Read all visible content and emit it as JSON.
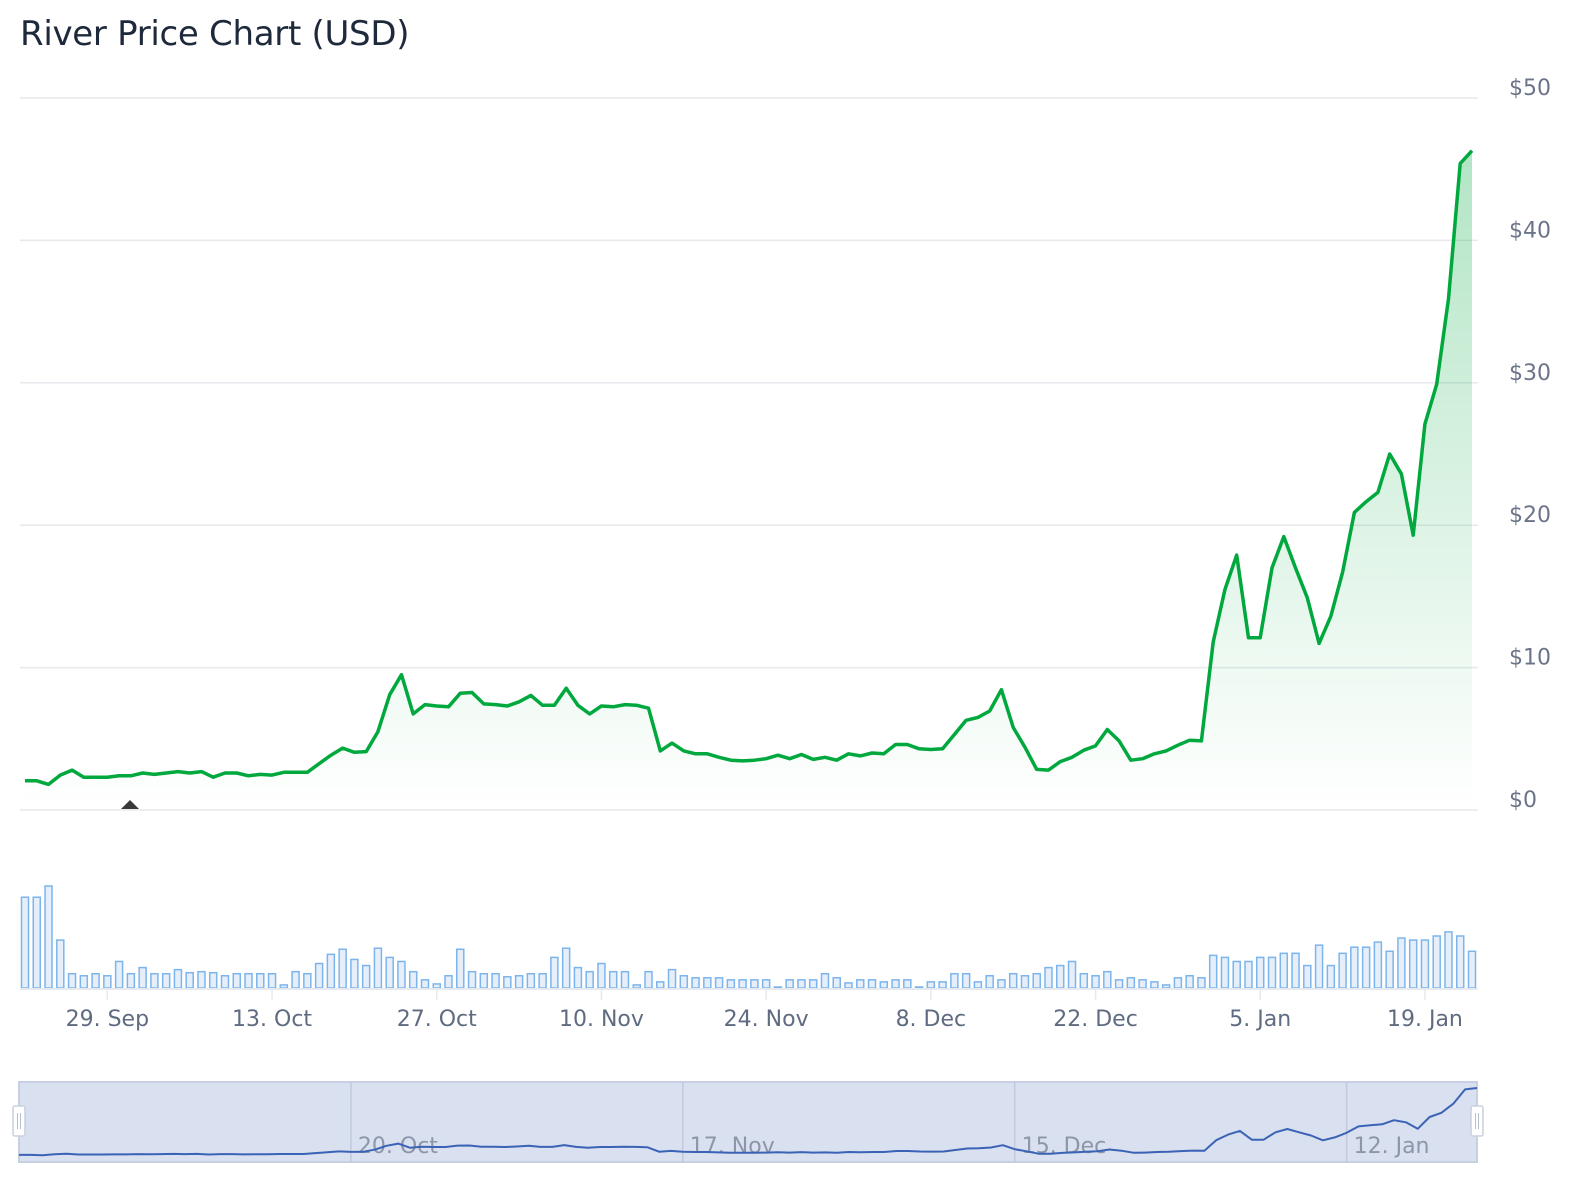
{
  "chart_data": {
    "type": "area",
    "title": "River Price Chart (USD)",
    "ylim": [
      0,
      50
    ],
    "y_ticks": [
      "$0",
      "$10",
      "$20",
      "$30",
      "$40",
      "$50"
    ],
    "y_tick_values": [
      0,
      10,
      20,
      30,
      40,
      50
    ],
    "x_ticks": [
      "29. Sep",
      "13. Oct",
      "27. Oct",
      "10. Nov",
      "24. Nov",
      "8. Dec",
      "22. Dec",
      "5. Jan",
      "19. Jan"
    ],
    "x_tick_dates": [
      "2025-09-29",
      "2025-10-13",
      "2025-10-27",
      "2025-11-10",
      "2025-11-24",
      "2025-12-08",
      "2025-12-22",
      "2026-01-05",
      "2026-01-19"
    ],
    "navigator_ticks": [
      "20. Oct",
      "17. Nov",
      "15. Dec",
      "12. Jan"
    ],
    "navigator_tick_dates": [
      "2025-10-20",
      "2025-11-17",
      "2025-12-15",
      "2026-01-12"
    ],
    "grid": true,
    "legend": "none",
    "colors": {
      "price_line": "#00a83e",
      "volume": "#7cb5ec",
      "navigator_line": "#3b63b5",
      "navigator_mask": "#d9e0ef",
      "marker": "#3a3a3a"
    },
    "x": [
      "2025-09-22",
      "2025-09-23",
      "2025-09-24",
      "2025-09-25",
      "2025-09-26",
      "2025-09-27",
      "2025-09-28",
      "2025-09-29",
      "2025-09-30",
      "2025-10-01",
      "2025-10-02",
      "2025-10-03",
      "2025-10-04",
      "2025-10-05",
      "2025-10-06",
      "2025-10-07",
      "2025-10-08",
      "2025-10-09",
      "2025-10-10",
      "2025-10-11",
      "2025-10-12",
      "2025-10-13",
      "2025-10-14",
      "2025-10-15",
      "2025-10-16",
      "2025-10-17",
      "2025-10-18",
      "2025-10-19",
      "2025-10-20",
      "2025-10-21",
      "2025-10-22",
      "2025-10-23",
      "2025-10-24",
      "2025-10-25",
      "2025-10-26",
      "2025-10-27",
      "2025-10-28",
      "2025-10-29",
      "2025-10-30",
      "2025-10-31",
      "2025-11-01",
      "2025-11-02",
      "2025-11-03",
      "2025-11-04",
      "2025-11-05",
      "2025-11-06",
      "2025-11-07",
      "2025-11-08",
      "2025-11-09",
      "2025-11-10",
      "2025-11-11",
      "2025-11-12",
      "2025-11-13",
      "2025-11-14",
      "2025-11-15",
      "2025-11-16",
      "2025-11-17",
      "2025-11-18",
      "2025-11-19",
      "2025-11-20",
      "2025-11-21",
      "2025-11-22",
      "2025-11-23",
      "2025-11-24",
      "2025-11-25",
      "2025-11-26",
      "2025-11-27",
      "2025-11-28",
      "2025-11-29",
      "2025-11-30",
      "2025-12-01",
      "2025-12-02",
      "2025-12-03",
      "2025-12-04",
      "2025-12-05",
      "2025-12-06",
      "2025-12-07",
      "2025-12-08",
      "2025-12-09",
      "2025-12-10",
      "2025-12-11",
      "2025-12-12",
      "2025-12-13",
      "2025-12-14",
      "2025-12-15",
      "2025-12-16",
      "2025-12-17",
      "2025-12-18",
      "2025-12-19",
      "2025-12-20",
      "2025-12-21",
      "2025-12-22",
      "2025-12-23",
      "2025-12-24",
      "2025-12-25",
      "2025-12-26",
      "2025-12-27",
      "2025-12-28",
      "2025-12-29",
      "2025-12-30",
      "2025-12-31",
      "2026-01-01",
      "2026-01-02",
      "2026-01-03",
      "2026-01-04",
      "2026-01-05",
      "2026-01-06",
      "2026-01-07",
      "2026-01-08",
      "2026-01-09",
      "2026-01-10",
      "2026-01-11",
      "2026-01-12",
      "2026-01-13",
      "2026-01-14",
      "2026-01-15",
      "2026-01-16",
      "2026-01-17",
      "2026-01-18",
      "2026-01-19",
      "2026-01-20",
      "2026-01-21",
      "2026-01-22",
      "2026-01-23"
    ],
    "series": [
      {
        "values": [
          2.05,
          2.05,
          1.8,
          2.45,
          2.8,
          2.3,
          2.3,
          2.3,
          2.4,
          2.4,
          2.6,
          2.5,
          2.6,
          2.7,
          2.6,
          2.7,
          2.3,
          2.6,
          2.6,
          2.4,
          2.5,
          2.45,
          2.65,
          2.65,
          2.65,
          3.25,
          3.85,
          4.35,
          4.05,
          4.1,
          5.5,
          8.1,
          9.5,
          6.75,
          7.4,
          7.3,
          7.25,
          8.2,
          8.25,
          7.45,
          7.4,
          7.3,
          7.6,
          8.05,
          7.35,
          7.35,
          8.55,
          7.35,
          6.75,
          7.3,
          7.25,
          7.4,
          7.35,
          7.15,
          4.15,
          4.7,
          4.15,
          3.95,
          3.95,
          3.7,
          3.5,
          3.45,
          3.5,
          3.6,
          3.85,
          3.6,
          3.9,
          3.55,
          3.7,
          3.5,
          3.95,
          3.8,
          4.0,
          3.95,
          4.6,
          4.6,
          4.3,
          4.25,
          4.3,
          5.3,
          6.3,
          6.5,
          6.95,
          8.45,
          5.8,
          4.4,
          2.85,
          2.8,
          3.4,
          3.7,
          4.2,
          4.5,
          5.65,
          4.85,
          3.5,
          3.6,
          3.95,
          4.15,
          4.55,
          4.9,
          4.85,
          11.8,
          15.5,
          17.9,
          12.1,
          12.1,
          17.0,
          19.2,
          17.0,
          14.9,
          11.7,
          13.6,
          16.7,
          20.9,
          21.65,
          22.3,
          25.0,
          23.6,
          19.3,
          27.1,
          29.9,
          35.9,
          45.4,
          46.3
        ]
      },
      {
        "type": "volume",
        "relative_values": [
          89,
          89,
          100,
          47,
          14,
          12,
          14,
          12,
          26,
          14,
          20,
          14,
          14,
          18,
          15,
          16,
          15,
          12,
          14,
          14,
          14,
          14,
          3,
          16,
          14,
          24,
          33,
          38,
          28,
          22,
          39,
          30,
          26,
          16,
          8,
          4,
          12,
          38,
          16,
          14,
          14,
          11,
          12,
          14,
          14,
          30,
          39,
          20,
          16,
          24,
          16,
          16,
          3,
          16,
          6,
          18,
          12,
          10,
          10,
          10,
          8,
          8,
          8,
          8,
          1,
          8,
          8,
          8,
          14,
          10,
          5,
          8,
          8,
          6,
          8,
          8,
          1,
          6,
          6,
          14,
          14,
          6,
          12,
          8,
          14,
          12,
          14,
          20,
          22,
          26,
          14,
          12,
          16,
          8,
          10,
          8,
          6,
          3,
          10,
          12,
          10,
          32,
          30,
          26,
          26,
          30,
          30,
          34,
          34,
          22,
          42,
          22,
          34,
          40,
          40,
          45,
          36,
          49,
          47,
          47,
          51,
          55,
          51,
          36
        ]
      }
    ]
  }
}
